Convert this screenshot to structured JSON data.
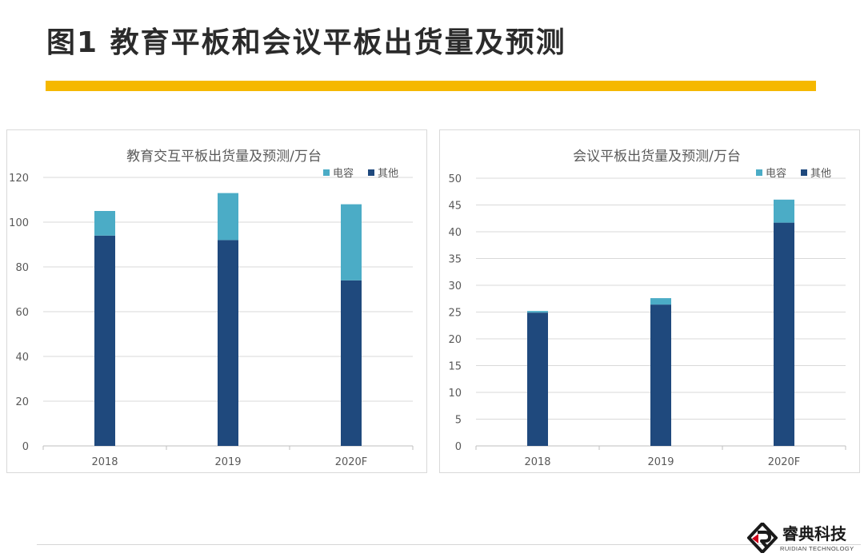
{
  "page": {
    "title": "图1 教育平板和会议平板出货量及预测"
  },
  "colors": {
    "accent_bar": "#f5b800",
    "series_dianrong": "#4bacc6",
    "series_qita": "#1f497d"
  },
  "logo": {
    "name": "睿典科技",
    "subtitle": "RUIDIAN TECHNOLOGY"
  },
  "chart_data": [
    {
      "type": "bar",
      "stacked": true,
      "title": "教育交互平板出货量及预测/万台",
      "categories": [
        "2018",
        "2019",
        "2020F"
      ],
      "series": [
        {
          "name": "其他",
          "values": [
            94,
            92,
            74
          ],
          "color": "#1f497d"
        },
        {
          "name": "电容",
          "values": [
            11,
            21,
            34
          ],
          "color": "#4bacc6"
        }
      ],
      "ylim": [
        0,
        120
      ],
      "yticks": [
        0,
        20,
        40,
        60,
        80,
        100,
        120
      ],
      "grid": true,
      "legend": "top-right",
      "legend_order": [
        "电容",
        "其他"
      ]
    },
    {
      "type": "bar",
      "stacked": true,
      "title": "会议平板出货量及预测/万台",
      "categories": [
        "2018",
        "2019",
        "2020F"
      ],
      "series": [
        {
          "name": "其他",
          "values": [
            24.9,
            26.4,
            41.7
          ],
          "color": "#1f497d"
        },
        {
          "name": "电容",
          "values": [
            0.3,
            1.2,
            4.3
          ],
          "color": "#4bacc6"
        }
      ],
      "ylim": [
        0,
        50
      ],
      "yticks": [
        0,
        5,
        10,
        15,
        20,
        25,
        30,
        35,
        40,
        45,
        50
      ],
      "grid": true,
      "legend": "top-right",
      "legend_order": [
        "电容",
        "其他"
      ]
    }
  ]
}
